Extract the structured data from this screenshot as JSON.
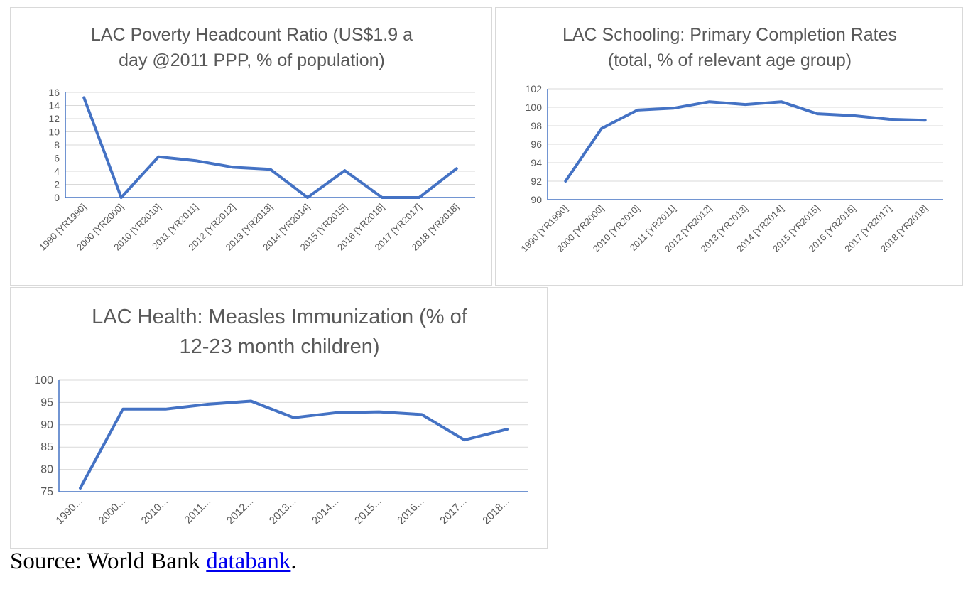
{
  "chart_data": [
    {
      "type": "line",
      "title": "LAC Poverty Headcount Ratio (US$1.9 a day @2011 PPP, % of population)",
      "title_lines": [
        "LAC Poverty Headcount Ratio (US$1.9 a",
        "day @2011 PPP, % of population)"
      ],
      "categories": [
        "1990 [YR1990]",
        "2000 [YR2000]",
        "2010 [YR2010]",
        "2011 [YR2011]",
        "2012 [YR2012]",
        "2013 [YR2013]",
        "2014 [YR2014]",
        "2015 [YR2015]",
        "2016 [YR2016]",
        "2017 [YR2017]",
        "2018 [YR2018]"
      ],
      "values": [
        15.2,
        0,
        6.2,
        5.6,
        4.6,
        4.3,
        0,
        4.1,
        0,
        0,
        4.4
      ],
      "ylim": [
        0,
        16
      ],
      "yticks": [
        0,
        2,
        4,
        6,
        8,
        10,
        12,
        14,
        16
      ],
      "grid": true,
      "line_color": "#4472c4"
    },
    {
      "type": "line",
      "title": "LAC Schooling: Primary Completion Rates (total, % of relevant age group)",
      "title_lines": [
        "LAC Schooling: Primary Completion Rates",
        "(total, % of relevant age group)"
      ],
      "categories": [
        "1990 [YR1990]",
        "2000 [YR2000]",
        "2010 [YR2010]",
        "2011 [YR2011]",
        "2012 [YR2012]",
        "2013 [YR2013]",
        "2014 [YR2014]",
        "2015 [YR2015]",
        "2016 [YR2016]",
        "2017 [YR2017]",
        "2018 [YR2018]"
      ],
      "values": [
        92.0,
        97.7,
        99.7,
        99.9,
        100.6,
        100.3,
        100.6,
        99.3,
        99.1,
        98.7,
        98.6
      ],
      "ylim": [
        90,
        102
      ],
      "yticks": [
        90,
        92,
        94,
        96,
        98,
        100,
        102
      ],
      "grid": true,
      "line_color": "#4472c4"
    },
    {
      "type": "line",
      "title": "LAC Health: Measles Immunization (% of 12-23 month children)",
      "title_lines": [
        "LAC Health: Measles Immunization (% of",
        "12-23 month children)"
      ],
      "categories": [
        "1990...",
        "2000...",
        "2010...",
        "2011...",
        "2012...",
        "2013...",
        "2014...",
        "2015...",
        "2016...",
        "2017...",
        "2018..."
      ],
      "values": [
        75.8,
        93.5,
        93.5,
        94.6,
        95.3,
        91.6,
        92.7,
        92.9,
        92.3,
        86.6,
        89.0
      ],
      "ylim": [
        75,
        100
      ],
      "yticks": [
        75,
        80,
        85,
        90,
        95,
        100
      ],
      "grid": true,
      "line_color": "#4472c4"
    }
  ],
  "source": {
    "prefix": "Source: World Bank ",
    "link_text": "databank",
    "suffix": "."
  }
}
